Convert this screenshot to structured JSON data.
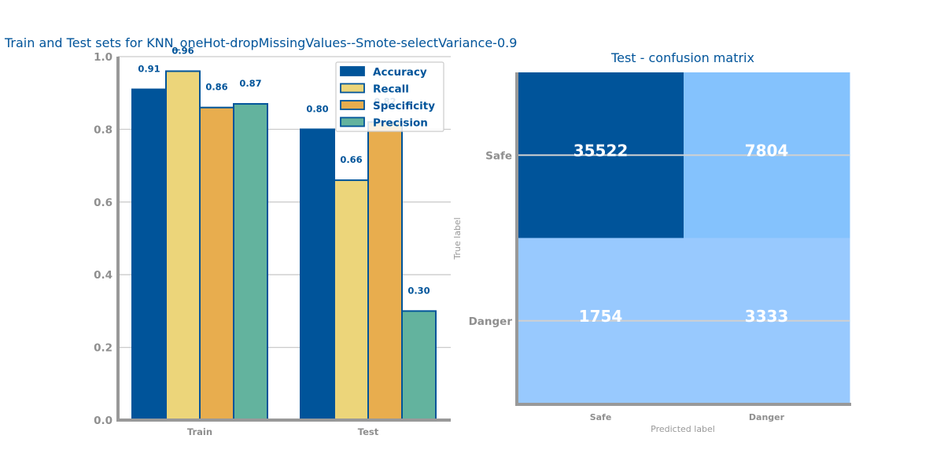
{
  "chart_data": [
    {
      "type": "bar",
      "title": "Train and Test sets for KNN_oneHot-dropMissingValues--Smote-selectVariance-0.9",
      "categories": [
        "Train",
        "Test"
      ],
      "ylim": [
        0,
        1.0
      ],
      "yticks": [
        "0.0",
        "0.2",
        "0.4",
        "0.6",
        "0.8",
        "1.0"
      ],
      "grid": true,
      "legend_position": "top-right",
      "series": [
        {
          "name": "Accuracy",
          "values": [
            0.91,
            0.8
          ],
          "labels": [
            "0.91",
            "0.80"
          ],
          "color": "#00549a"
        },
        {
          "name": "Recall",
          "values": [
            0.96,
            0.66
          ],
          "labels": [
            "0.96",
            "0.66"
          ],
          "color": "#ecd57a"
        },
        {
          "name": "Specificity",
          "values": [
            0.86,
            0.82
          ],
          "labels": [
            "0.86",
            "0.82"
          ],
          "color": "#e8ad4e"
        },
        {
          "name": "Precision",
          "values": [
            0.87,
            0.3
          ],
          "labels": [
            "0.87",
            "0.30"
          ],
          "color": "#63b39e"
        }
      ]
    },
    {
      "type": "heatmap",
      "title": "Test - confusion matrix",
      "xlabel": "Predicted label",
      "ylabel": "True label",
      "x_categories": [
        "Safe",
        "Danger"
      ],
      "y_categories": [
        "Safe",
        "Danger"
      ],
      "values": [
        [
          35522,
          7804
        ],
        [
          1754,
          3333
        ]
      ],
      "colors": [
        [
          "#00549a",
          "#84c2fd"
        ],
        [
          "#98c9fe",
          "#98c9fe"
        ]
      ]
    }
  ]
}
